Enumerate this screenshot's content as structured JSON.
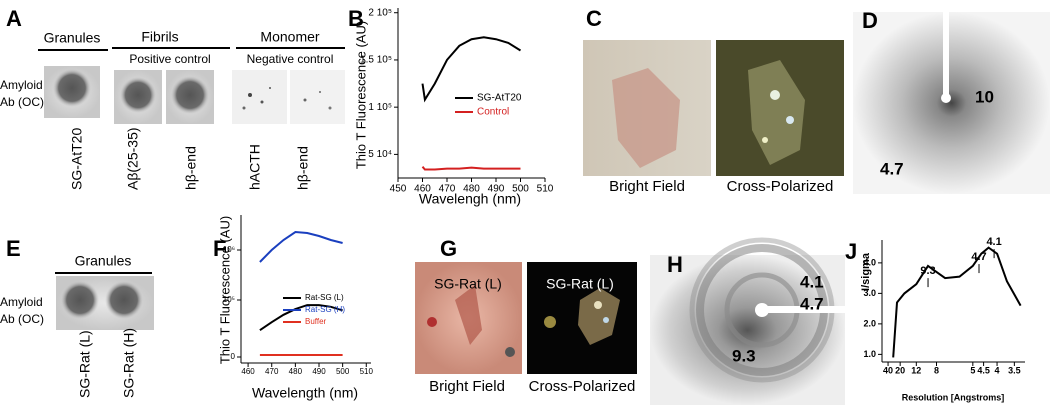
{
  "panels": {
    "A": {
      "label": "A",
      "columns": [
        {
          "heading": "Granules"
        },
        {
          "heading": "Fibrils",
          "subheading": "Positive control"
        },
        {
          "heading": "Monomer",
          "subheading": "Negative control"
        }
      ],
      "row_label": [
        "Amyloid",
        "Ab (OC)"
      ],
      "samples": [
        "SG-AtT20",
        "Aβ(25-35)",
        "hβ-end",
        "hACTH",
        "hβ-end"
      ]
    },
    "C": {
      "label": "C",
      "captions": [
        "Bright Field",
        "Cross-Polarized"
      ]
    },
    "D": {
      "label": "D",
      "annotations": [
        "10",
        "4.7"
      ]
    },
    "E": {
      "label": "E",
      "heading": "Granules",
      "row_label": [
        "Amyloid",
        "Ab (OC)"
      ],
      "samples": [
        "SG-Rat (L)",
        "SG-Rat (H)"
      ]
    },
    "G": {
      "label": "G",
      "image_labels": [
        "SG-Rat (L)",
        "SG-Rat (L)"
      ],
      "captions": [
        "Bright Field",
        "Cross-Polarized"
      ]
    },
    "H": {
      "label": "H",
      "annotations": [
        "4.1",
        "4.7",
        "9.3"
      ]
    }
  },
  "chart_data": [
    {
      "type": "line",
      "panel_label": "B",
      "x_label": "Wavelengh (nm)",
      "y_label": "Thio T Fluorescence (AU)",
      "x": [
        460,
        461,
        465,
        470,
        475,
        480,
        485,
        490,
        495,
        500
      ],
      "series": [
        {
          "name": "SG-AtT20",
          "color": "#000000",
          "values": [
            125000,
            108000,
            125000,
            150000,
            165000,
            172000,
            174000,
            172000,
            168000,
            160000
          ]
        },
        {
          "name": "Control",
          "color": "#d42020",
          "values": [
            37000,
            34000,
            34000,
            35000,
            35000,
            36000,
            35000,
            35000,
            35000,
            35000
          ]
        }
      ],
      "xlim": [
        450,
        510
      ],
      "xticks": [
        450,
        460,
        470,
        480,
        490,
        500,
        510
      ],
      "ylim": [
        25000,
        205000
      ],
      "yticks": [
        {
          "value": 50000,
          "label": "5 10⁴"
        },
        {
          "value": 100000,
          "label": "1 10⁵"
        },
        {
          "value": 150000,
          "label": "1.5 10⁵"
        },
        {
          "value": 200000,
          "label": "2 10⁵"
        }
      ]
    },
    {
      "type": "line",
      "panel_label": "F",
      "x_label": "Wavelength (nm)",
      "y_label": "Thio T Fluorescence (AU)",
      "x": [
        465,
        470,
        475,
        480,
        485,
        490,
        495,
        500
      ],
      "series": [
        {
          "name": "Rat-SG (L)",
          "color": "#000000",
          "values": [
            47000,
            61000,
            74000,
            84000,
            91000,
            91000,
            88000,
            82000
          ]
        },
        {
          "name": "Rat-SG (H)",
          "color": "#1a3fbf",
          "values": [
            784000,
            1000000,
            1180000,
            1324000,
            1306000,
            1252000,
            1180000,
            1126000
          ]
        },
        {
          "name": "Buffer",
          "color": "#e03020",
          "values": [
            3500,
            3500,
            3500,
            3500,
            3500,
            3500,
            3500,
            3500
          ]
        }
      ],
      "xlim": [
        457,
        512
      ],
      "xticks": [
        460,
        470,
        480,
        490,
        500,
        510
      ],
      "ylim": [
        -14000,
        1630000
      ],
      "yticks": [
        0,
        {
          "value": 100000,
          "label": "10⁵"
        },
        {
          "value": 1000000,
          "label": "10⁶"
        }
      ]
    },
    {
      "type": "line",
      "panel_label": "J",
      "x_label": "Resolution [Angstroms]",
      "y_label": "I/sigma",
      "xscale": "reciprocal",
      "x": [
        28,
        23,
        17,
        12,
        9.3,
        7,
        5.8,
        5,
        4.6,
        4.3,
        4.0,
        3.7,
        3.35
      ],
      "series": [
        {
          "color": "#000000",
          "values": [
            0.9,
            2.7,
            3.0,
            3.3,
            3.9,
            3.5,
            3.55,
            3.9,
            4.3,
            4.5,
            4.3,
            3.4,
            2.6
          ]
        }
      ],
      "xlim": [
        80,
        3.25
      ],
      "xticks": [
        40,
        20,
        12,
        8,
        5,
        4.5,
        4,
        3.5
      ],
      "ylim": [
        0.75,
        4.75
      ],
      "yticks": [
        {
          "value": 1,
          "label": "1.0"
        },
        {
          "value": 2,
          "label": "2.0"
        },
        {
          "value": 3,
          "label": "3.0"
        },
        {
          "value": 4,
          "label": "4.0"
        }
      ],
      "annotations": [
        {
          "label": "9.3",
          "x": 9.3,
          "y": 3.73
        },
        {
          "label": "4.7",
          "x": 4.7,
          "y": 4.19
        },
        {
          "label": "4.1",
          "x": 4.1,
          "y": 4.68
        }
      ]
    }
  ]
}
